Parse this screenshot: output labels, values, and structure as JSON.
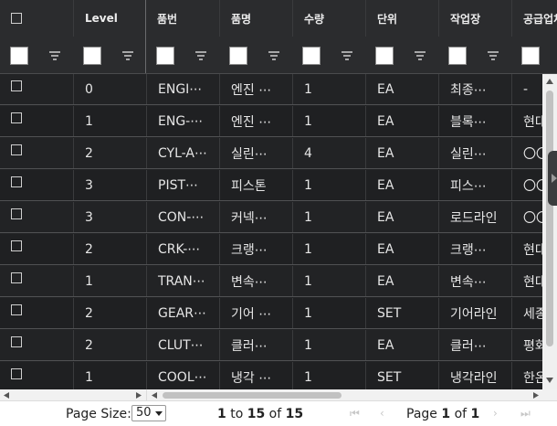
{
  "columns": [
    "Level",
    "품번",
    "품명",
    "수량",
    "단위",
    "작업장",
    "공급업체"
  ],
  "rows": [
    {
      "level": "0",
      "part_no": "ENGI⋯",
      "part_name": "엔진 ⋯",
      "qty": "1",
      "unit": "EA",
      "workplace": "최종⋯",
      "supplier": "-"
    },
    {
      "level": "1",
      "part_no": "ENG-⋯",
      "part_name": "엔진 ⋯",
      "qty": "1",
      "unit": "EA",
      "workplace": "블록⋯",
      "supplier": "현대"
    },
    {
      "level": "2",
      "part_no": "CYL-A⋯",
      "part_name": "실린⋯",
      "qty": "4",
      "unit": "EA",
      "workplace": "실린⋯",
      "supplier": "〇〇"
    },
    {
      "level": "3",
      "part_no": "PIST⋯",
      "part_name": "피스톤",
      "qty": "1",
      "unit": "EA",
      "workplace": "피스⋯",
      "supplier": "〇〇"
    },
    {
      "level": "3",
      "part_no": "CON-⋯",
      "part_name": "커넥⋯",
      "qty": "1",
      "unit": "EA",
      "workplace": "로드라인",
      "supplier": "〇〇"
    },
    {
      "level": "2",
      "part_no": "CRK-⋯",
      "part_name": "크랭⋯",
      "qty": "1",
      "unit": "EA",
      "workplace": "크랭⋯",
      "supplier": "현대"
    },
    {
      "level": "1",
      "part_no": "TRAN⋯",
      "part_name": "변속⋯",
      "qty": "1",
      "unit": "EA",
      "workplace": "변속⋯",
      "supplier": "현대"
    },
    {
      "level": "2",
      "part_no": "GEAR⋯",
      "part_name": "기어 ⋯",
      "qty": "1",
      "unit": "SET",
      "workplace": "기어라인",
      "supplier": "세종"
    },
    {
      "level": "2",
      "part_no": "CLUT⋯",
      "part_name": "클러⋯",
      "qty": "1",
      "unit": "EA",
      "workplace": "클러⋯",
      "supplier": "평화"
    },
    {
      "level": "1",
      "part_no": "COOL⋯",
      "part_name": "냉각 ⋯",
      "qty": "1",
      "unit": "SET",
      "workplace": "냉각라인",
      "supplier": "한온"
    }
  ],
  "pager": {
    "page_size_label": "Page Size:",
    "page_size_value": "50",
    "range_from": "1",
    "range_to_word": "to",
    "range_to": "15",
    "range_of_word": "of",
    "range_total": "15",
    "page_word": "Page",
    "page_current": "1",
    "page_of_word": "of",
    "page_total": "1"
  }
}
